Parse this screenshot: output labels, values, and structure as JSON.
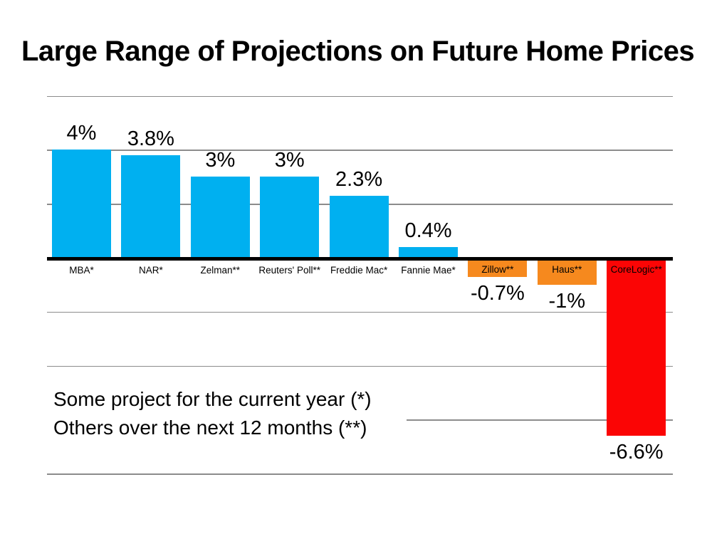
{
  "slide": {
    "title": "Large Range of Projections on Future Home Prices"
  },
  "note": {
    "line1": "Some project for the current year (*)",
    "line2": "Others over the next 12 months (**)"
  },
  "colors": {
    "positive_bar": "#00B0F0",
    "small_negative_bar": "#F6891E",
    "large_negative_bar": "#FB0505",
    "gridline": "#8c8c8c",
    "axis": "#000000",
    "text": "#000000"
  },
  "chart_data": {
    "type": "bar",
    "title": "Large Range of Projections on Future Home Prices",
    "categories": [
      "MBA*",
      "NAR*",
      "Zelman**",
      "Reuters' Poll**",
      "Freddie Mac*",
      "Fannie Mae*",
      "Zillow**",
      "Haus**",
      "CoreLogic**"
    ],
    "values": [
      4,
      3.8,
      3,
      3,
      2.3,
      0.4,
      -0.7,
      -1,
      -6.6
    ],
    "value_labels": [
      "4%",
      "3.8%",
      "3%",
      "3%",
      "2.3%",
      "0.4%",
      "-0.7%",
      "-1%",
      "-6.6%"
    ],
    "bar_colors": [
      "#00B0F0",
      "#00B0F0",
      "#00B0F0",
      "#00B0F0",
      "#00B0F0",
      "#00B0F0",
      "#F6891E",
      "#F6891E",
      "#FB0505"
    ],
    "xlabel": "",
    "ylabel": "",
    "ylim": [
      -8,
      6
    ],
    "gridline_step": 2,
    "grid": true,
    "legend": false,
    "annotations": [
      "Some project for the current year (*)",
      "Others over the next 12 months (**)"
    ]
  }
}
